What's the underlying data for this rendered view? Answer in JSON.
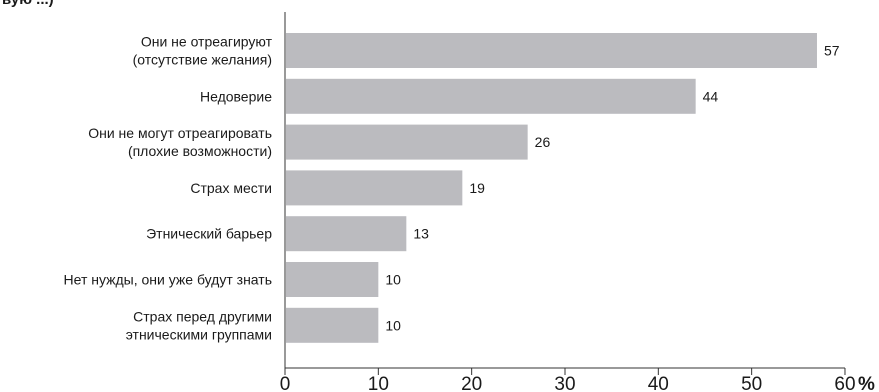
{
  "header": {
    "clipped_text": "вую ...)"
  },
  "chart_data": {
    "type": "bar",
    "orientation": "horizontal",
    "categories": [
      [
        "Они не отреагируют",
        "(отсутствие желания)"
      ],
      [
        "Недоверие"
      ],
      [
        "Они не могут отреагировать",
        "(плохие возможности)"
      ],
      [
        "Страх мести"
      ],
      [
        "Этнический барьер"
      ],
      [
        "Нет нужды, они уже будут знать"
      ],
      [
        "Страх перед другими",
        "этническими группами"
      ]
    ],
    "values": [
      57,
      44,
      26,
      19,
      13,
      10,
      10
    ],
    "xlim": [
      0,
      60
    ],
    "xticks": [
      0,
      10,
      20,
      30,
      40,
      50,
      60
    ],
    "xunit": "%",
    "bar_color": "#bbbbbf",
    "grid": false,
    "legend": "none"
  }
}
